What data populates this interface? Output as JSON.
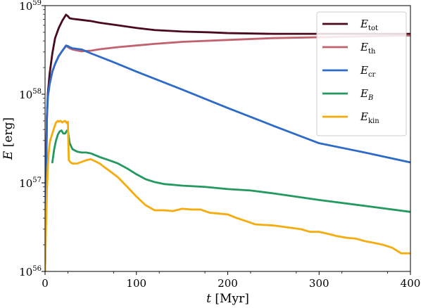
{
  "chart_data": {
    "type": "line",
    "xlabel": {
      "var": "t",
      "unit": " [Myr]"
    },
    "ylabel": {
      "var": "E",
      "unit": " [erg]"
    },
    "xlim": [
      0,
      400
    ],
    "ylim": [
      1e+56,
      1e+59
    ],
    "yscale": "log",
    "xticks": [
      "0",
      "100",
      "200",
      "300",
      "400"
    ],
    "yticks": [
      {
        "base": "10",
        "exp": "56"
      },
      {
        "base": "10",
        "exp": "57"
      },
      {
        "base": "10",
        "exp": "58"
      },
      {
        "base": "10",
        "exp": "59"
      }
    ],
    "grid": false,
    "legend_position": "top-right",
    "series": [
      {
        "name": "E",
        "sub": "tot",
        "sub_italic": false,
        "color": "#4a0a1c",
        "x": [
          0,
          1,
          2,
          3,
          5,
          8,
          11,
          15,
          19,
          23,
          25,
          27,
          30,
          40,
          50,
          60,
          80,
          100,
          120,
          150,
          180,
          200,
          250,
          300,
          350,
          400
        ],
        "y": [
          1e+56,
          8.5e+56,
          5.4e+57,
          1e+58,
          1.7e+58,
          2.9e+58,
          4.3e+58,
          5.6e+58,
          6.8e+58,
          7.9e+58,
          7.6e+58,
          7.2e+58,
          7.1e+58,
          6.9e+58,
          6.7e+58,
          6.4e+58,
          6e+58,
          5.6e+58,
          5.3e+58,
          5.1e+58,
          5e+58,
          4.9e+58,
          4.8e+58,
          4.8e+58,
          4.8e+58,
          4.8e+58
        ]
      },
      {
        "name": "E",
        "sub": "th",
        "sub_italic": false,
        "color": "#c1626f",
        "x": [
          0,
          1,
          2,
          3,
          5,
          8,
          11,
          15,
          19,
          23,
          25,
          27,
          30,
          40,
          50,
          60,
          80,
          100,
          120,
          150,
          200,
          250,
          300,
          350,
          400
        ],
        "y": [
          1e+56,
          8e+56,
          5e+57,
          9.2e+57,
          1.3e+58,
          1.8e+58,
          2.2e+58,
          2.7e+58,
          3.1e+58,
          3.5e+58,
          3.4e+58,
          3.3e+58,
          3.2e+58,
          3.05e+58,
          3.1e+58,
          3.22e+58,
          3.4e+58,
          3.55e+58,
          3.7e+58,
          3.9e+58,
          4.1e+58,
          4.3e+58,
          4.4e+58,
          4.5e+58,
          4.6e+58
        ]
      },
      {
        "name": "E",
        "sub": "cr",
        "sub_italic": false,
        "color": "#2e6bc9",
        "x": [
          0,
          1,
          2,
          3,
          5,
          8,
          11,
          15,
          19,
          23,
          25,
          27,
          30,
          40,
          50,
          75,
          100,
          150,
          200,
          250,
          300,
          350,
          400
        ],
        "y": [
          1e+56,
          8.5e+56,
          5.4e+57,
          9.4e+57,
          1.3e+58,
          1.8e+58,
          2.2e+58,
          2.7e+58,
          3.1e+58,
          3.55e+58,
          3.5e+58,
          3.4e+58,
          3.3e+58,
          3.2e+58,
          2.9e+58,
          2.3e+58,
          1.8e+58,
          1.13e+58,
          7e+57,
          4.4e+57,
          2.8e+57,
          2.2e+57,
          1.7e+57
        ]
      },
      {
        "name": "E",
        "sub": "B",
        "sub_italic": true,
        "color": "#23995f",
        "x": [
          8,
          10,
          12,
          14,
          16,
          18,
          20,
          22,
          24,
          25,
          27,
          30,
          35,
          40,
          45,
          50,
          55,
          60,
          70,
          80,
          90,
          100,
          110,
          120,
          130,
          150,
          175,
          200,
          225,
          250,
          300,
          350,
          400
        ],
        "y": [
          1.7e+57,
          2.4e+57,
          3e+57,
          3.5e+57,
          3.8e+57,
          3.9e+57,
          3.6e+57,
          3.6e+57,
          3.9e+57,
          3.9e+57,
          2.8e+57,
          2.4e+57,
          2.25e+57,
          2.2e+57,
          2.2e+57,
          2.15e+57,
          2.05e+57,
          1.95e+57,
          1.8e+57,
          1.65e+57,
          1.45e+57,
          1.25e+57,
          1.1e+57,
          1.02e+57,
          9.7e+56,
          9.3e+56,
          9e+56,
          8.5e+56,
          8.2e+56,
          7.6e+56,
          6.4e+56,
          5.5e+56,
          4.7e+56
        ]
      },
      {
        "name": "E",
        "sub": "kin",
        "sub_italic": false,
        "color": "#f5ac0c",
        "x": [
          0,
          1,
          2,
          3,
          4,
          5,
          6,
          8,
          10,
          12,
          14,
          15,
          17,
          19,
          20,
          22,
          24,
          25,
          26,
          28,
          30,
          35,
          40,
          45,
          50,
          55,
          60,
          65,
          70,
          80,
          90,
          100,
          110,
          120,
          130,
          140,
          150,
          160,
          170,
          180,
          190,
          200,
          210,
          220,
          230,
          240,
          250,
          260,
          270,
          280,
          290,
          300,
          310,
          320,
          330,
          340,
          350,
          360,
          370,
          380,
          390,
          400
        ],
        "y": [
          1e+56,
          3e+56,
          8e+56,
          1.5e+57,
          2.2e+57,
          2.8e+57,
          3.1e+57,
          3.6e+57,
          4.2e+57,
          4.8e+57,
          5e+57,
          4.9e+57,
          5e+57,
          4.8e+57,
          4.9e+57,
          5e+57,
          4.7e+57,
          4.9e+57,
          1.8e+57,
          1.7e+57,
          1.65e+57,
          1.65e+57,
          1.72e+57,
          1.8e+57,
          1.85e+57,
          1.75e+57,
          1.65e+57,
          1.5e+57,
          1.38e+57,
          1.15e+57,
          9e+56,
          7e+56,
          5.6e+56,
          4.9e+56,
          4.9e+56,
          4.8e+56,
          5.1e+56,
          5e+56,
          5e+56,
          4.6e+56,
          4.5e+56,
          4.4e+56,
          4e+56,
          3.7e+56,
          3.4e+56,
          3.35e+56,
          3.3e+56,
          3.2e+56,
          3.1e+56,
          3e+56,
          2.8e+56,
          2.8e+56,
          2.65e+56,
          2.5e+56,
          2.4e+56,
          2.35e+56,
          2.2e+56,
          2.1e+56,
          2e+56,
          1.85e+56,
          1.6e+56,
          1.6e+56
        ]
      }
    ]
  }
}
